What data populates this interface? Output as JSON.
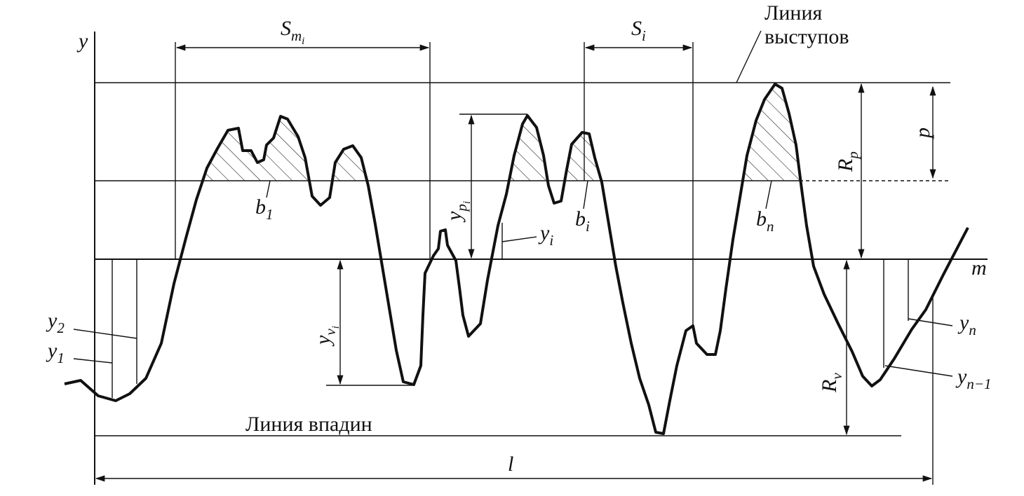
{
  "labels": {
    "y_axis": "y",
    "s_mi": {
      "base": "S",
      "sub": "m",
      "subsub": "i"
    },
    "s_i": {
      "base": "S",
      "sub": "i"
    },
    "peak_line": [
      "Линия",
      "выступов"
    ],
    "r_p": {
      "base": "R",
      "sub": "p"
    },
    "p": "p",
    "b_1": {
      "base": "b",
      "sub": "1"
    },
    "b_i": {
      "base": "b",
      "sub": "i"
    },
    "b_n": {
      "base": "b",
      "sub": "n"
    },
    "y_pi": {
      "base": "y",
      "sub": "p",
      "subsub": "i"
    },
    "y_i": {
      "base": "y",
      "sub": "i"
    },
    "m": "m",
    "y_2": {
      "base": "y",
      "sub": "2"
    },
    "y_1": {
      "base": "y",
      "sub": "1"
    },
    "y_vi": {
      "base": "y",
      "sub": "v",
      "subsub": "i"
    },
    "r_v": {
      "base": "R",
      "sub": "v"
    },
    "y_n": {
      "base": "y",
      "sub": "n"
    },
    "y_n1": {
      "base": "y",
      "sub": "n−1"
    },
    "valley_line": "Линия впадин",
    "l": "l"
  }
}
